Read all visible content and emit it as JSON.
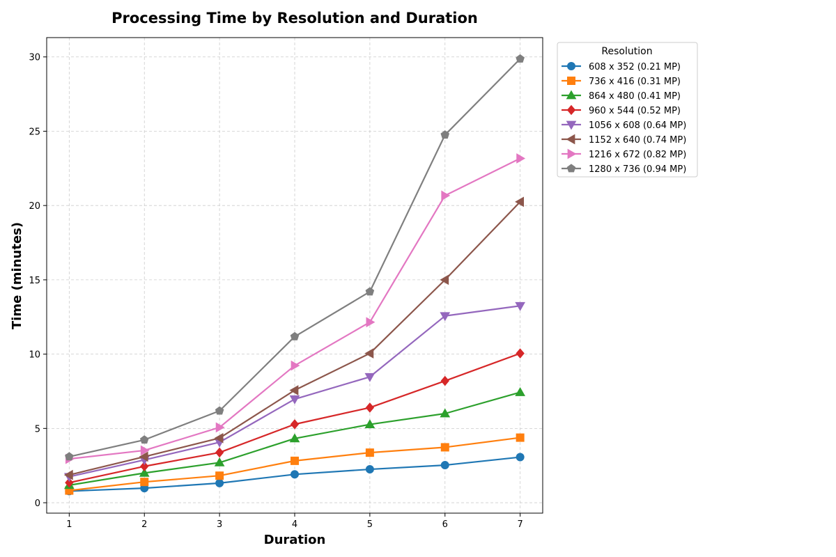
{
  "chart_data": {
    "type": "line",
    "title": "Processing Time by Resolution and Duration",
    "xlabel": "Duration",
    "ylabel": "Time (minutes)",
    "x": [
      1,
      2,
      3,
      4,
      5,
      6,
      7
    ],
    "xlim": [
      0.7,
      7.3
    ],
    "ylim": [
      -0.7,
      31.3
    ],
    "xticks": [
      "1",
      "2",
      "3",
      "4",
      "5",
      "6",
      "7"
    ],
    "yticks": [
      "0",
      "5",
      "10",
      "15",
      "20",
      "25",
      "30"
    ],
    "grid": true,
    "legend": {
      "title": "Resolution",
      "placement": "outside-right-top"
    },
    "series": [
      {
        "name": "608 x 352 (0.21 MP)",
        "color": "#1f77b4",
        "marker": "circle",
        "values": [
          0.78,
          0.98,
          1.32,
          1.91,
          2.25,
          2.53,
          3.07
        ]
      },
      {
        "name": "736 x 416 (0.31 MP)",
        "color": "#ff7f0e",
        "marker": "square",
        "values": [
          0.82,
          1.4,
          1.82,
          2.82,
          3.37,
          3.73,
          4.38
        ]
      },
      {
        "name": "864 x 480 (0.41 MP)",
        "color": "#2ca02c",
        "marker": "triangle-up",
        "values": [
          1.18,
          2.0,
          2.7,
          4.32,
          5.27,
          6.0,
          7.43
        ]
      },
      {
        "name": "960 x 544 (0.52 MP)",
        "color": "#d62728",
        "marker": "diamond",
        "values": [
          1.35,
          2.45,
          3.38,
          5.28,
          6.4,
          8.2,
          10.05
        ]
      },
      {
        "name": "1056 x 608 (0.64 MP)",
        "color": "#9467bd",
        "marker": "triangle-down",
        "values": [
          1.75,
          2.88,
          4.07,
          6.97,
          8.47,
          12.57,
          13.25
        ]
      },
      {
        "name": "1152 x 640 (0.74 MP)",
        "color": "#8c564b",
        "marker": "triangle-left",
        "values": [
          1.87,
          3.1,
          4.35,
          7.57,
          10.05,
          15.0,
          20.25
        ]
      },
      {
        "name": "1216 x 672 (0.82 MP)",
        "color": "#e377c2",
        "marker": "triangle-right",
        "values": [
          2.95,
          3.52,
          5.07,
          9.23,
          12.15,
          20.67,
          23.17
        ]
      },
      {
        "name": "1280 x 736 (0.94 MP)",
        "color": "#7f7f7f",
        "marker": "pentagon",
        "values": [
          3.1,
          4.23,
          6.18,
          11.18,
          14.2,
          24.75,
          29.87
        ]
      }
    ]
  }
}
